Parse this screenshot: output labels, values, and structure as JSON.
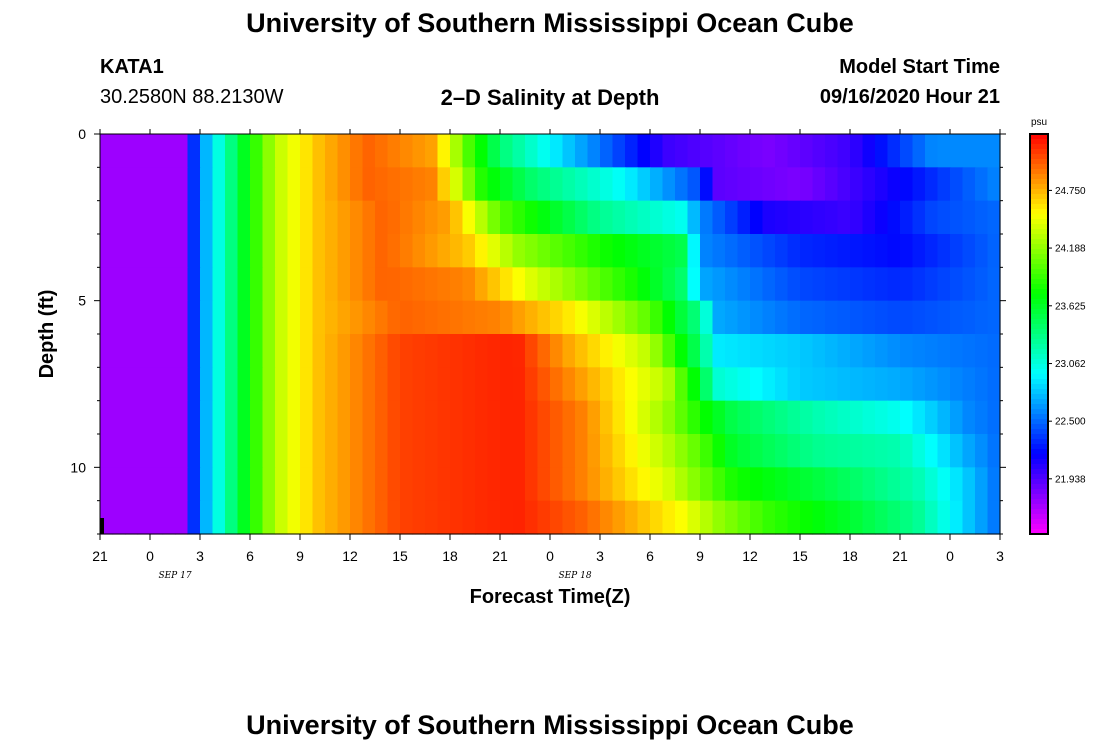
{
  "header": {
    "title_top": "University of Southern Mississippi Ocean Cube",
    "title_bottom": "University of Southern Mississippi Ocean Cube",
    "station_name": "KATA1",
    "station_coords": "30.2580N 88.2130W",
    "plot_title": "2–D Salinity at Depth",
    "model_label": "Model Start Time",
    "model_time": "09/16/2020 Hour 21"
  },
  "chart_data": {
    "type": "heatmap",
    "title": "2–D Salinity at Depth",
    "xlabel": "Forecast Time(Z)",
    "ylabel": "Depth (ft)",
    "x_tick_labels": [
      "21",
      "0",
      "3",
      "6",
      "9",
      "12",
      "15",
      "18",
      "21",
      "0",
      "3",
      "6",
      "9",
      "12",
      "15",
      "18",
      "21",
      "0",
      "3"
    ],
    "x_date_labels": [
      {
        "label": "SEP 17",
        "after_hours": 6
      },
      {
        "label": "SEP 18",
        "after_hours": 30
      }
    ],
    "y_tick_labels": [
      "0",
      "5",
      "10"
    ],
    "y_ticks": [
      0,
      5,
      10
    ],
    "y_range": [
      0,
      12
    ],
    "x_range_hours": [
      0,
      54
    ],
    "colorbar_unit": "psu",
    "colorbar_ticks": [
      "21.938",
      "22.500",
      "23.062",
      "23.625",
      "24.188",
      "24.750"
    ],
    "colorbar_values": [
      21.938,
      22.5,
      23.062,
      23.625,
      24.188,
      24.75
    ],
    "value_range": [
      21.4,
      25.3
    ],
    "depth_bands": [
      {
        "depth": 0.5,
        "cols": [
          [
            0,
            21.7
          ],
          [
            5,
            21.7
          ],
          [
            5.8,
            22.5
          ],
          [
            7,
            23.0
          ],
          [
            8.5,
            23.6
          ],
          [
            10.5,
            24.3
          ],
          [
            13,
            24.7
          ],
          [
            16,
            25.0
          ],
          [
            20,
            24.8
          ],
          [
            22,
            24.0
          ],
          [
            24,
            23.4
          ],
          [
            28,
            22.8
          ],
          [
            31,
            22.4
          ],
          [
            34,
            22.0
          ],
          [
            40,
            21.8
          ],
          [
            45,
            22.0
          ],
          [
            50,
            22.6
          ],
          [
            54,
            22.6
          ]
        ]
      },
      {
        "depth": 1.5,
        "cols": [
          [
            0,
            21.7
          ],
          [
            5,
            21.7
          ],
          [
            5.8,
            22.5
          ],
          [
            7,
            23.0
          ],
          [
            8.5,
            23.6
          ],
          [
            10.5,
            24.3
          ],
          [
            13,
            24.7
          ],
          [
            16,
            25.0
          ],
          [
            20,
            24.9
          ],
          [
            23,
            23.8
          ],
          [
            26,
            23.4
          ],
          [
            31,
            23.0
          ],
          [
            36,
            22.4
          ],
          [
            37,
            21.9
          ],
          [
            42,
            21.8
          ],
          [
            47,
            22.1
          ],
          [
            54,
            22.6
          ]
        ]
      },
      {
        "depth": 2.5,
        "cols": [
          [
            0,
            21.7
          ],
          [
            5,
            21.7
          ],
          [
            5.8,
            22.5
          ],
          [
            7,
            23.0
          ],
          [
            8.5,
            23.6
          ],
          [
            10.5,
            24.3
          ],
          [
            13,
            24.7
          ],
          [
            17,
            25.0
          ],
          [
            21,
            24.8
          ],
          [
            24,
            24.0
          ],
          [
            30,
            23.3
          ],
          [
            35,
            23.0
          ],
          [
            36,
            22.6
          ],
          [
            40,
            22.1
          ],
          [
            45,
            22.0
          ],
          [
            50,
            22.4
          ],
          [
            54,
            22.5
          ]
        ]
      },
      {
        "depth": 3.5,
        "cols": [
          [
            0,
            21.7
          ],
          [
            5,
            21.7
          ],
          [
            5.8,
            22.5
          ],
          [
            7,
            23.0
          ],
          [
            8.5,
            23.6
          ],
          [
            10.5,
            24.3
          ],
          [
            13,
            24.7
          ],
          [
            17,
            25.0
          ],
          [
            22,
            24.7
          ],
          [
            25,
            24.2
          ],
          [
            30,
            23.8
          ],
          [
            35,
            23.5
          ],
          [
            36,
            22.6
          ],
          [
            42,
            22.3
          ],
          [
            48,
            22.2
          ],
          [
            54,
            22.5
          ]
        ]
      },
      {
        "depth": 4.5,
        "cols": [
          [
            0,
            21.7
          ],
          [
            5,
            21.7
          ],
          [
            5.8,
            22.5
          ],
          [
            7,
            23.0
          ],
          [
            8.5,
            23.6
          ],
          [
            10.5,
            24.3
          ],
          [
            13,
            24.7
          ],
          [
            17,
            25.0
          ],
          [
            22,
            24.9
          ],
          [
            26,
            24.4
          ],
          [
            32,
            23.8
          ],
          [
            35,
            23.4
          ],
          [
            36,
            22.7
          ],
          [
            42,
            22.4
          ],
          [
            48,
            22.3
          ],
          [
            54,
            22.5
          ]
        ]
      },
      {
        "depth": 5.5,
        "cols": [
          [
            0,
            21.7
          ],
          [
            5,
            21.7
          ],
          [
            5.8,
            22.5
          ],
          [
            7,
            23.0
          ],
          [
            8.5,
            23.6
          ],
          [
            10.5,
            24.3
          ],
          [
            13,
            24.7
          ],
          [
            18,
            25.0
          ],
          [
            24,
            24.9
          ],
          [
            28,
            24.6
          ],
          [
            33,
            24.0
          ],
          [
            36,
            23.3
          ],
          [
            37,
            22.7
          ],
          [
            42,
            22.5
          ],
          [
            48,
            22.4
          ],
          [
            54,
            22.5
          ]
        ]
      },
      {
        "depth": 6.5,
        "cols": [
          [
            0,
            21.7
          ],
          [
            5,
            21.7
          ],
          [
            5.8,
            22.5
          ],
          [
            7,
            23.0
          ],
          [
            8.5,
            23.6
          ],
          [
            10.5,
            24.3
          ],
          [
            13,
            24.7
          ],
          [
            18,
            25.1
          ],
          [
            25,
            25.2
          ],
          [
            28,
            24.8
          ],
          [
            33,
            24.3
          ],
          [
            36,
            23.4
          ],
          [
            37,
            22.9
          ],
          [
            42,
            22.8
          ],
          [
            48,
            22.6
          ],
          [
            54,
            22.5
          ]
        ]
      },
      {
        "depth": 7.5,
        "cols": [
          [
            0,
            21.7
          ],
          [
            5,
            21.7
          ],
          [
            5.8,
            22.5
          ],
          [
            7,
            23.0
          ],
          [
            8.5,
            23.6
          ],
          [
            10.5,
            24.3
          ],
          [
            13,
            24.7
          ],
          [
            18,
            25.1
          ],
          [
            25,
            25.2
          ],
          [
            29,
            24.8
          ],
          [
            34,
            24.3
          ],
          [
            36,
            23.6
          ],
          [
            37,
            23.1
          ],
          [
            42,
            22.8
          ],
          [
            48,
            22.7
          ],
          [
            54,
            22.5
          ]
        ]
      },
      {
        "depth": 8.5,
        "cols": [
          [
            0,
            21.7
          ],
          [
            5,
            21.7
          ],
          [
            5.8,
            22.5
          ],
          [
            7,
            23.0
          ],
          [
            8.5,
            23.6
          ],
          [
            10.5,
            24.3
          ],
          [
            13,
            24.7
          ],
          [
            18,
            25.1
          ],
          [
            25,
            25.2
          ],
          [
            29,
            24.9
          ],
          [
            34,
            24.2
          ],
          [
            36,
            23.8
          ],
          [
            38,
            23.5
          ],
          [
            43,
            23.2
          ],
          [
            48,
            23.0
          ],
          [
            52,
            22.6
          ],
          [
            54,
            22.5
          ]
        ]
      },
      {
        "depth": 9.5,
        "cols": [
          [
            0,
            21.7
          ],
          [
            5,
            21.7
          ],
          [
            5.8,
            22.5
          ],
          [
            7,
            23.0
          ],
          [
            8.5,
            23.6
          ],
          [
            10.5,
            24.3
          ],
          [
            13,
            24.7
          ],
          [
            18,
            25.1
          ],
          [
            25,
            25.2
          ],
          [
            29,
            24.9
          ],
          [
            34,
            24.3
          ],
          [
            36,
            24.0
          ],
          [
            38,
            23.6
          ],
          [
            43,
            23.3
          ],
          [
            48,
            23.2
          ],
          [
            52,
            22.7
          ],
          [
            54,
            22.5
          ]
        ]
      },
      {
        "depth": 10.5,
        "cols": [
          [
            0,
            21.7
          ],
          [
            5,
            21.7
          ],
          [
            5.8,
            22.5
          ],
          [
            7,
            23.0
          ],
          [
            8.5,
            23.6
          ],
          [
            10.5,
            24.3
          ],
          [
            13,
            24.7
          ],
          [
            18,
            25.1
          ],
          [
            25,
            25.2
          ],
          [
            29,
            24.9
          ],
          [
            34,
            24.4
          ],
          [
            36,
            24.1
          ],
          [
            38,
            23.8
          ],
          [
            44,
            23.5
          ],
          [
            49,
            23.2
          ],
          [
            52,
            22.8
          ],
          [
            54,
            22.5
          ]
        ]
      },
      {
        "depth": 11.5,
        "cols": [
          [
            0,
            21.7
          ],
          [
            5,
            21.7
          ],
          [
            5.8,
            22.5
          ],
          [
            7,
            23.0
          ],
          [
            8.5,
            23.6
          ],
          [
            10.5,
            24.3
          ],
          [
            13,
            24.7
          ],
          [
            18,
            25.1
          ],
          [
            25,
            25.2
          ],
          [
            29,
            25.0
          ],
          [
            35,
            24.5
          ],
          [
            37,
            24.2
          ],
          [
            40,
            23.9
          ],
          [
            45,
            23.6
          ],
          [
            49,
            23.3
          ],
          [
            52,
            22.8
          ],
          [
            54,
            22.5
          ]
        ]
      }
    ]
  }
}
